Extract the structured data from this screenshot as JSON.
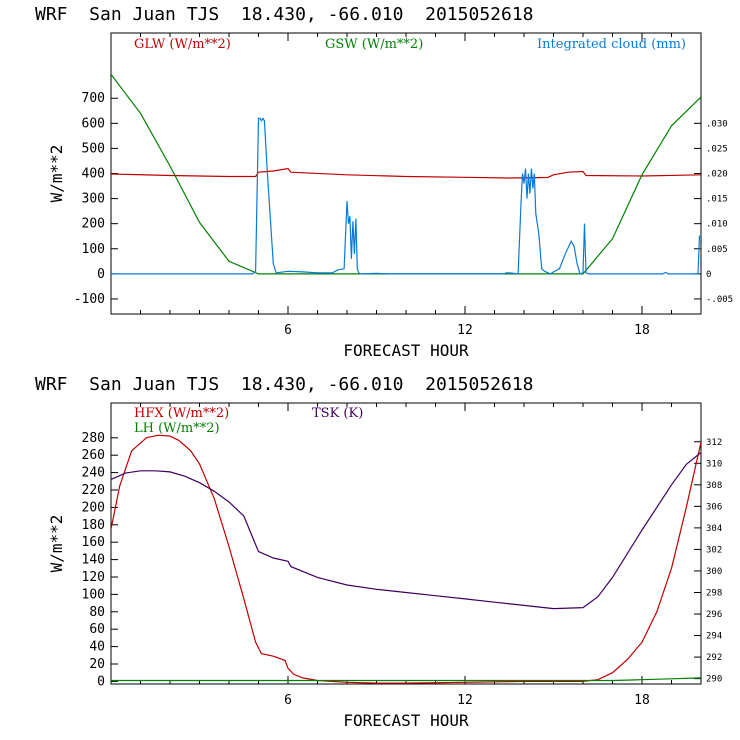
{
  "chart_data": [
    {
      "type": "line",
      "title": "WRF  San Juan TJS  18.430, -66.010  2015052618",
      "xlabel": "FORECAST HOUR",
      "ylabel": "W/m**2",
      "xlim": [
        0,
        20
      ],
      "ylim": [
        -160,
        960
      ],
      "y2lim": [
        -0.008,
        0.048
      ],
      "xticks": [
        6,
        12,
        18
      ],
      "xtick_labels": [
        "6",
        "12",
        "18"
      ],
      "yticks": [
        -100,
        0,
        100,
        200,
        300,
        400,
        500,
        600,
        700
      ],
      "ytick_labels": [
        "-100",
        "0",
        "100",
        "200",
        "300",
        "400",
        "500",
        "600",
        "700"
      ],
      "y2ticks": [
        -0.005,
        0,
        0.005,
        0.01,
        0.015,
        0.02,
        0.025,
        0.03
      ],
      "y2tick_labels": [
        "-.005",
        "0",
        ".005",
        ".010",
        ".015",
        ".020",
        ".025",
        ".030"
      ],
      "series": [
        {
          "name": "GLW (W/m**2)",
          "color": "#bf0000",
          "axis": "left",
          "x": [
            0,
            2,
            4,
            4.9,
            5.0,
            5.5,
            6.0,
            6.1,
            8,
            10,
            12,
            13.5,
            14.8,
            15.0,
            15.5,
            16.0,
            16.1,
            18,
            20
          ],
          "y": [
            398,
            392,
            388,
            388,
            405,
            410,
            420,
            405,
            395,
            388,
            385,
            382,
            384,
            395,
            405,
            408,
            392,
            390,
            395
          ]
        },
        {
          "name": "GSW (W/m**2)",
          "color": "#007f00",
          "axis": "left",
          "x": [
            0,
            1,
            2,
            3,
            4,
            5,
            5.3,
            16,
            17,
            18,
            19,
            20
          ],
          "y": [
            795,
            640,
            430,
            205,
            50,
            0,
            0,
            0,
            140,
            395,
            590,
            705
          ]
        },
        {
          "name": "Integrated cloud (mm)",
          "color": "#0a7ad8",
          "axis": "right",
          "x": [
            0,
            4.8,
            4.9,
            5.0,
            5.05,
            5.1,
            5.15,
            5.2,
            5.3,
            5.5,
            5.6,
            6.0,
            6.5,
            7.0,
            7.5,
            7.7,
            7.9,
            8.0,
            8.05,
            8.1,
            8.15,
            8.2,
            8.25,
            8.3,
            8.35,
            8.4,
            8.45,
            8.5,
            9.0,
            9.5,
            12,
            13.3,
            13.4,
            13.5,
            13.8,
            13.9,
            13.95,
            14.0,
            14.05,
            14.1,
            14.15,
            14.2,
            14.25,
            14.3,
            14.35,
            14.4,
            14.5,
            14.6,
            14.7,
            14.9,
            15.0,
            15.2,
            15.4,
            15.6,
            15.7,
            15.8,
            15.9,
            16.0,
            16.05,
            16.1,
            16.2,
            16.3,
            18,
            18.7,
            18.8,
            18.9,
            19.9,
            19.95,
            20.0
          ],
          "y": [
            0,
            0,
            0.0005,
            0.031,
            0.031,
            0.0305,
            0.031,
            0.0305,
            0.02,
            0.002,
            0.0002,
            0.0005,
            0.0004,
            0.0002,
            0.0002,
            0.0008,
            0.001,
            0.0145,
            0.01,
            0.0115,
            0.003,
            0.0105,
            0.004,
            0.011,
            0.001,
            0.0002,
            0,
            0,
            0.0001,
            0,
            0,
            0,
            0.0002,
            0.0002,
            0,
            0.014,
            0.02,
            0.018,
            0.021,
            0.015,
            0.02,
            0.016,
            0.021,
            0.017,
            0.02,
            0.012,
            0.008,
            0.001,
            0.0005,
            0,
            0.0004,
            0.001,
            0.004,
            0.0065,
            0.0055,
            0.002,
            0,
            0.0002,
            0.01,
            0.0002,
            0,
            0,
            0,
            0,
            0.0003,
            0,
            0,
            0.0075,
            0.0075
          ]
        }
      ]
    },
    {
      "type": "line",
      "title": "WRF  San Juan TJS  18.430, -66.010  2015052618",
      "xlabel": "FORECAST HOUR",
      "ylabel": "W/m**2",
      "xlim": [
        0,
        20
      ],
      "ylim": [
        -3,
        320
      ],
      "y2lim": [
        289.5,
        315.6
      ],
      "xticks": [
        6,
        12,
        18
      ],
      "xtick_labels": [
        "6",
        "12",
        "18"
      ],
      "yticks": [
        0,
        20,
        40,
        60,
        80,
        100,
        120,
        140,
        160,
        180,
        200,
        220,
        240,
        260,
        280
      ],
      "ytick_labels": [
        "0",
        "20",
        "40",
        "60",
        "80",
        "100",
        "120",
        "140",
        "160",
        "180",
        "200",
        "220",
        "240",
        "260",
        "280"
      ],
      "y2ticks": [
        290,
        292,
        294,
        296,
        298,
        300,
        302,
        304,
        306,
        308,
        310,
        312
      ],
      "y2tick_labels": [
        "290",
        "292",
        "294",
        "296",
        "298",
        "300",
        "302",
        "304",
        "306",
        "308",
        "310",
        "312"
      ],
      "series": [
        {
          "name": "HFX (W/m**2)",
          "color": "#bf0000",
          "axis": "left",
          "x": [
            0,
            0.3,
            0.7,
            1.2,
            1.6,
            2.0,
            2.3,
            2.7,
            3.0,
            3.5,
            4.0,
            4.5,
            4.9,
            5.1,
            5.5,
            5.9,
            6.0,
            6.2,
            6.5,
            7.0,
            8.0,
            9.0,
            10,
            12,
            14,
            16,
            16.5,
            17,
            17.5,
            18,
            18.5,
            19,
            19.5,
            20
          ],
          "y": [
            175,
            225,
            265,
            280,
            283,
            282,
            277,
            265,
            250,
            210,
            155,
            95,
            45,
            32,
            29,
            24,
            15,
            8,
            4,
            1,
            -1,
            -2,
            -2,
            -1,
            0,
            0,
            2,
            10,
            25,
            45,
            80,
            130,
            200,
            275
          ]
        },
        {
          "name": "LH (W/m**2)",
          "color": "#007f00",
          "axis": "left",
          "x": [
            0,
            2,
            4,
            6,
            8,
            10,
            12,
            14,
            16,
            17,
            18,
            19,
            20
          ],
          "y": [
            1,
            1,
            1,
            1,
            1,
            1,
            1,
            1,
            1,
            1,
            2,
            3,
            4
          ]
        },
        {
          "name": "TSK (K)",
          "color": "#3f005f",
          "axis": "right",
          "x": [
            0,
            0.5,
            1,
            1.5,
            2,
            2.5,
            3,
            3.5,
            4,
            4.5,
            5,
            5.5,
            6,
            6.1,
            7,
            8,
            9,
            10,
            11,
            12,
            13,
            14,
            15,
            16,
            16.5,
            17,
            17.5,
            18,
            18.5,
            19,
            19.5,
            20
          ],
          "y": [
            308.5,
            309.1,
            309.3,
            309.3,
            309.2,
            308.8,
            308.2,
            307.4,
            306.4,
            305.1,
            301.8,
            301.2,
            300.9,
            300.4,
            299.4,
            298.7,
            298.3,
            298,
            297.7,
            297.4,
            297.1,
            296.8,
            296.5,
            296.6,
            297.6,
            299.4,
            301.6,
            303.8,
            305.9,
            308,
            309.9,
            311
          ]
        }
      ]
    }
  ]
}
